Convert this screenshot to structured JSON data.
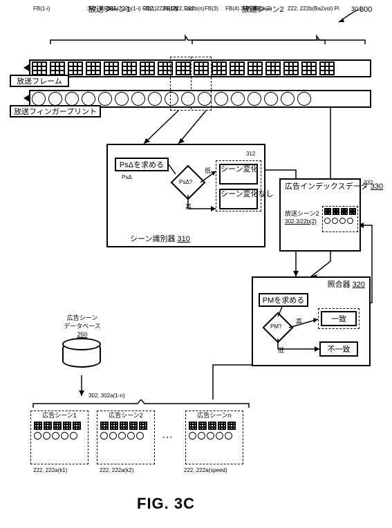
{
  "figure_number": "300",
  "figure_caption": "FIG. 3C",
  "top_scene_divider_ref": "304",
  "scenes": {
    "scene1_label": "放送シーン1",
    "scene1_ref": "302, 302b(1)",
    "scene2_label": "放送シーン2",
    "scene2_ref": "302, 302b(2)"
  },
  "frame_labels": {
    "f_pre": "FB(1-i)",
    "f1": "FB(1)",
    "f2": "FB(2)",
    "f3": "FB(3)",
    "f4": "FB(4)",
    "f5": "FB(5)",
    "fad": "Fad"
  },
  "streams": {
    "frames_label": "放送フレーム",
    "fingerprints_label": "放送フィンガープリント",
    "frames_ref_mid": "222, 222b(1-i)",
    "frames_ref_right": "222, 222b(Ba2vol) Pi",
    "fp_left_ref": "222, 222b(1-i)",
    "fp_cur_ref": "222, 222b(n)"
  },
  "scene_discriminator": {
    "box_title": "シーン識別器",
    "box_ref": "310",
    "compute_label": "PsΔを求める",
    "ps_var": "PsΔ",
    "diamond_label": "PsΔ?",
    "low": "低",
    "high": "高",
    "scene_change": "シーン変化",
    "no_scene_change": "シーン変化なし",
    "group_ref": "312"
  },
  "matcher": {
    "box_title": "照合器",
    "box_ref": "320",
    "compute_label": "PMを求める",
    "diamond_label": "PM?",
    "low": "低",
    "high": "高",
    "match": "一致",
    "no_match": "不一致"
  },
  "ad_index": {
    "title": "広告インデックスデータ",
    "ref": "330",
    "item_label": "放送シーン2",
    "item_sub": "302·3/22b(2)",
    "graphic_ref": "332"
  },
  "db": {
    "label1": "広告シーン",
    "label2": "データベース",
    "ref": "250"
  },
  "ad_scenes": {
    "overall_ref": "302, 302a(1-n)",
    "scene1": {
      "label": "広告シーン1",
      "sub": "222, 222a(k1)"
    },
    "scene2": {
      "label": "広告シーン2",
      "sub": "222, 222a(k2)"
    },
    "ellipsis": "···",
    "scenen": {
      "label": "広告シーンn",
      "sub": "222, 222a(speed)"
    }
  },
  "colors": {
    "stroke": "#000000",
    "bg": "#ffffff"
  }
}
